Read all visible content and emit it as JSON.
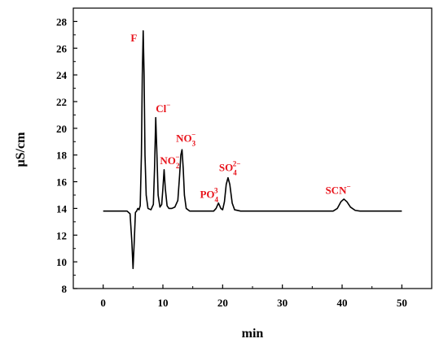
{
  "chart_data": {
    "type": "line",
    "xlabel": "min",
    "ylabel": "μS/cm",
    "xlim": [
      -5,
      55
    ],
    "ylim": [
      8,
      29
    ],
    "x_ticks": [
      0,
      10,
      20,
      30,
      40,
      50
    ],
    "y_ticks": [
      8,
      10,
      12,
      14,
      16,
      18,
      20,
      22,
      24,
      26,
      28
    ],
    "grid": false,
    "legend": "none",
    "line_color": "#000000",
    "label_color": "#e8141c",
    "series": [
      {
        "points": [
          [
            0,
            13.8
          ],
          [
            4.0,
            13.8
          ],
          [
            4.5,
            13.6
          ],
          [
            4.8,
            11.5
          ],
          [
            5.0,
            9.5
          ],
          [
            5.2,
            11.5
          ],
          [
            5.4,
            13.7
          ],
          [
            5.6,
            13.8
          ],
          [
            5.8,
            14.0
          ],
          [
            6.0,
            13.9
          ],
          [
            6.2,
            14.2
          ],
          [
            6.4,
            18.0
          ],
          [
            6.55,
            24.0
          ],
          [
            6.7,
            27.3
          ],
          [
            6.85,
            24.0
          ],
          [
            7.0,
            18.0
          ],
          [
            7.2,
            15.0
          ],
          [
            7.5,
            14.0
          ],
          [
            8.0,
            13.9
          ],
          [
            8.4,
            14.3
          ],
          [
            8.6,
            17.0
          ],
          [
            8.8,
            20.8
          ],
          [
            9.0,
            18.0
          ],
          [
            9.2,
            15.0
          ],
          [
            9.5,
            14.1
          ],
          [
            9.8,
            14.3
          ],
          [
            10.0,
            15.5
          ],
          [
            10.2,
            16.9
          ],
          [
            10.4,
            15.5
          ],
          [
            10.7,
            14.2
          ],
          [
            11.0,
            14.0
          ],
          [
            11.5,
            14.0
          ],
          [
            12.0,
            14.1
          ],
          [
            12.5,
            14.6
          ],
          [
            12.8,
            16.5
          ],
          [
            13.0,
            18.0
          ],
          [
            13.2,
            18.4
          ],
          [
            13.4,
            17.0
          ],
          [
            13.6,
            15.0
          ],
          [
            13.9,
            14.0
          ],
          [
            14.5,
            13.8
          ],
          [
            18.5,
            13.8
          ],
          [
            18.9,
            14.0
          ],
          [
            19.3,
            14.4
          ],
          [
            19.7,
            14.0
          ],
          [
            20.0,
            13.9
          ],
          [
            20.3,
            14.5
          ],
          [
            20.6,
            15.8
          ],
          [
            20.9,
            16.3
          ],
          [
            21.2,
            15.8
          ],
          [
            21.6,
            14.4
          ],
          [
            22.0,
            13.9
          ],
          [
            23.0,
            13.8
          ],
          [
            38.5,
            13.8
          ],
          [
            39.2,
            14.0
          ],
          [
            39.8,
            14.5
          ],
          [
            40.3,
            14.7
          ],
          [
            40.8,
            14.5
          ],
          [
            41.4,
            14.1
          ],
          [
            42.2,
            13.85
          ],
          [
            43.0,
            13.8
          ],
          [
            50,
            13.8
          ]
        ]
      }
    ],
    "annotations": [
      {
        "id": "F",
        "text": "F",
        "sup": "",
        "sub": "",
        "x": 4.6,
        "y": 26.5
      },
      {
        "id": "Cl",
        "text": "Cl",
        "sup": "−",
        "sub": "",
        "x": 8.8,
        "y": 21.2
      },
      {
        "id": "NO2",
        "text": "NO",
        "sup": "−",
        "sub": "2",
        "x": 9.5,
        "y": 17.3
      },
      {
        "id": "NO3",
        "text": "NO",
        "sup": "−",
        "sub": "3",
        "x": 12.2,
        "y": 19.0
      },
      {
        "id": "PO4",
        "text": "PO",
        "sup": "3",
        "sub": "4",
        "x": 16.2,
        "y": 14.8
      },
      {
        "id": "SO4",
        "text": "SO",
        "sup": "2−",
        "sub": "4",
        "x": 19.4,
        "y": 16.8
      },
      {
        "id": "SCN",
        "text": "SCN",
        "sup": "−",
        "sub": "",
        "x": 37.2,
        "y": 15.1
      }
    ]
  }
}
